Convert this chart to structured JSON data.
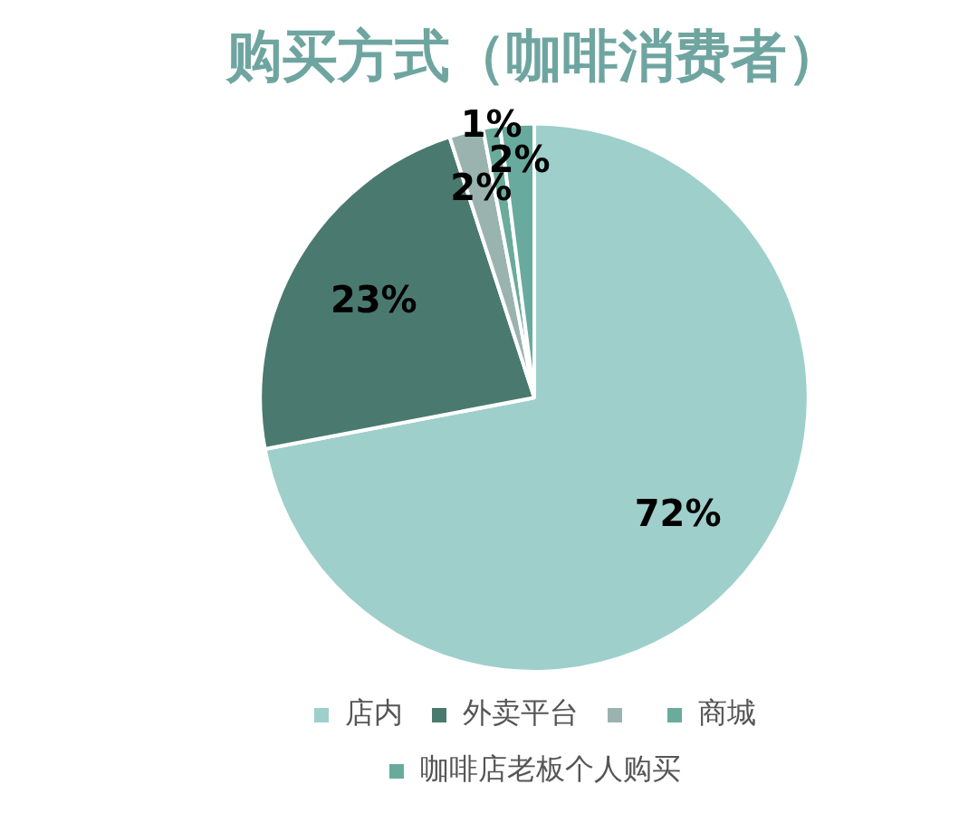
{
  "chart_data": {
    "type": "pie",
    "title": "购买方式（咖啡消费者）",
    "categories": [
      "店内",
      "外卖平台",
      null,
      "商城",
      "咖啡店老板个人购买"
    ],
    "values": [
      72,
      23,
      2,
      1,
      2
    ],
    "colors": [
      "#9ecfcb",
      "#4a7a6f",
      "#9ab3ae",
      "#6aab9c",
      "#68aa9e"
    ],
    "value_labels": [
      "72%",
      "23%",
      "2%",
      "1%",
      "2%"
    ],
    "legend": "bottom"
  }
}
